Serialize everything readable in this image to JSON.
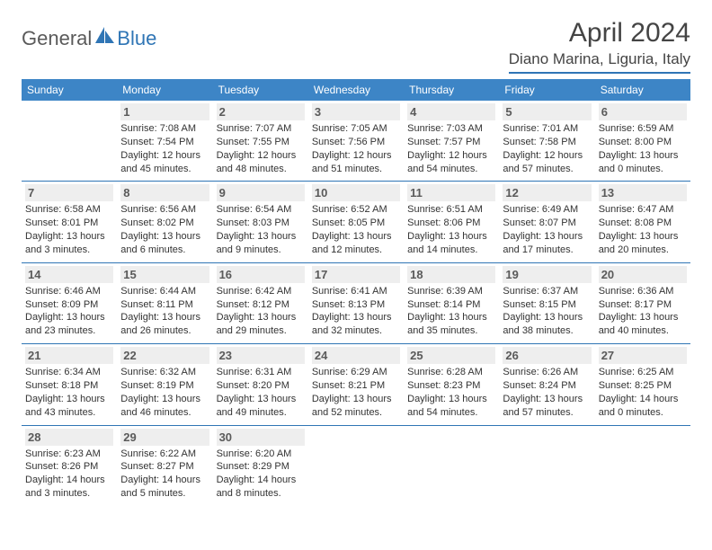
{
  "brand": {
    "part1": "General",
    "part2": "Blue"
  },
  "title": "April 2024",
  "location": "Diano Marina, Liguria, Italy",
  "style": {
    "header_bg": "#3d85c6",
    "accent": "#2f75b5",
    "daynum_bg": "#eeeeee",
    "text_color": "#333333",
    "info_fontsize": 11,
    "daynum_fontsize": 13,
    "header_fontsize": 12,
    "title_fontsize": 30,
    "location_fontsize": 17
  },
  "weekdays": [
    "Sunday",
    "Monday",
    "Tuesday",
    "Wednesday",
    "Thursday",
    "Friday",
    "Saturday"
  ],
  "weeks": [
    [
      null,
      {
        "n": "1",
        "sr": "Sunrise: 7:08 AM",
        "ss": "Sunset: 7:54 PM",
        "dl": "Daylight: 12 hours and 45 minutes."
      },
      {
        "n": "2",
        "sr": "Sunrise: 7:07 AM",
        "ss": "Sunset: 7:55 PM",
        "dl": "Daylight: 12 hours and 48 minutes."
      },
      {
        "n": "3",
        "sr": "Sunrise: 7:05 AM",
        "ss": "Sunset: 7:56 PM",
        "dl": "Daylight: 12 hours and 51 minutes."
      },
      {
        "n": "4",
        "sr": "Sunrise: 7:03 AM",
        "ss": "Sunset: 7:57 PM",
        "dl": "Daylight: 12 hours and 54 minutes."
      },
      {
        "n": "5",
        "sr": "Sunrise: 7:01 AM",
        "ss": "Sunset: 7:58 PM",
        "dl": "Daylight: 12 hours and 57 minutes."
      },
      {
        "n": "6",
        "sr": "Sunrise: 6:59 AM",
        "ss": "Sunset: 8:00 PM",
        "dl": "Daylight: 13 hours and 0 minutes."
      }
    ],
    [
      {
        "n": "7",
        "sr": "Sunrise: 6:58 AM",
        "ss": "Sunset: 8:01 PM",
        "dl": "Daylight: 13 hours and 3 minutes."
      },
      {
        "n": "8",
        "sr": "Sunrise: 6:56 AM",
        "ss": "Sunset: 8:02 PM",
        "dl": "Daylight: 13 hours and 6 minutes."
      },
      {
        "n": "9",
        "sr": "Sunrise: 6:54 AM",
        "ss": "Sunset: 8:03 PM",
        "dl": "Daylight: 13 hours and 9 minutes."
      },
      {
        "n": "10",
        "sr": "Sunrise: 6:52 AM",
        "ss": "Sunset: 8:05 PM",
        "dl": "Daylight: 13 hours and 12 minutes."
      },
      {
        "n": "11",
        "sr": "Sunrise: 6:51 AM",
        "ss": "Sunset: 8:06 PM",
        "dl": "Daylight: 13 hours and 14 minutes."
      },
      {
        "n": "12",
        "sr": "Sunrise: 6:49 AM",
        "ss": "Sunset: 8:07 PM",
        "dl": "Daylight: 13 hours and 17 minutes."
      },
      {
        "n": "13",
        "sr": "Sunrise: 6:47 AM",
        "ss": "Sunset: 8:08 PM",
        "dl": "Daylight: 13 hours and 20 minutes."
      }
    ],
    [
      {
        "n": "14",
        "sr": "Sunrise: 6:46 AM",
        "ss": "Sunset: 8:09 PM",
        "dl": "Daylight: 13 hours and 23 minutes."
      },
      {
        "n": "15",
        "sr": "Sunrise: 6:44 AM",
        "ss": "Sunset: 8:11 PM",
        "dl": "Daylight: 13 hours and 26 minutes."
      },
      {
        "n": "16",
        "sr": "Sunrise: 6:42 AM",
        "ss": "Sunset: 8:12 PM",
        "dl": "Daylight: 13 hours and 29 minutes."
      },
      {
        "n": "17",
        "sr": "Sunrise: 6:41 AM",
        "ss": "Sunset: 8:13 PM",
        "dl": "Daylight: 13 hours and 32 minutes."
      },
      {
        "n": "18",
        "sr": "Sunrise: 6:39 AM",
        "ss": "Sunset: 8:14 PM",
        "dl": "Daylight: 13 hours and 35 minutes."
      },
      {
        "n": "19",
        "sr": "Sunrise: 6:37 AM",
        "ss": "Sunset: 8:15 PM",
        "dl": "Daylight: 13 hours and 38 minutes."
      },
      {
        "n": "20",
        "sr": "Sunrise: 6:36 AM",
        "ss": "Sunset: 8:17 PM",
        "dl": "Daylight: 13 hours and 40 minutes."
      }
    ],
    [
      {
        "n": "21",
        "sr": "Sunrise: 6:34 AM",
        "ss": "Sunset: 8:18 PM",
        "dl": "Daylight: 13 hours and 43 minutes."
      },
      {
        "n": "22",
        "sr": "Sunrise: 6:32 AM",
        "ss": "Sunset: 8:19 PM",
        "dl": "Daylight: 13 hours and 46 minutes."
      },
      {
        "n": "23",
        "sr": "Sunrise: 6:31 AM",
        "ss": "Sunset: 8:20 PM",
        "dl": "Daylight: 13 hours and 49 minutes."
      },
      {
        "n": "24",
        "sr": "Sunrise: 6:29 AM",
        "ss": "Sunset: 8:21 PM",
        "dl": "Daylight: 13 hours and 52 minutes."
      },
      {
        "n": "25",
        "sr": "Sunrise: 6:28 AM",
        "ss": "Sunset: 8:23 PM",
        "dl": "Daylight: 13 hours and 54 minutes."
      },
      {
        "n": "26",
        "sr": "Sunrise: 6:26 AM",
        "ss": "Sunset: 8:24 PM",
        "dl": "Daylight: 13 hours and 57 minutes."
      },
      {
        "n": "27",
        "sr": "Sunrise: 6:25 AM",
        "ss": "Sunset: 8:25 PM",
        "dl": "Daylight: 14 hours and 0 minutes."
      }
    ],
    [
      {
        "n": "28",
        "sr": "Sunrise: 6:23 AM",
        "ss": "Sunset: 8:26 PM",
        "dl": "Daylight: 14 hours and 3 minutes."
      },
      {
        "n": "29",
        "sr": "Sunrise: 6:22 AM",
        "ss": "Sunset: 8:27 PM",
        "dl": "Daylight: 14 hours and 5 minutes."
      },
      {
        "n": "30",
        "sr": "Sunrise: 6:20 AM",
        "ss": "Sunset: 8:29 PM",
        "dl": "Daylight: 14 hours and 8 minutes."
      },
      null,
      null,
      null,
      null
    ]
  ]
}
